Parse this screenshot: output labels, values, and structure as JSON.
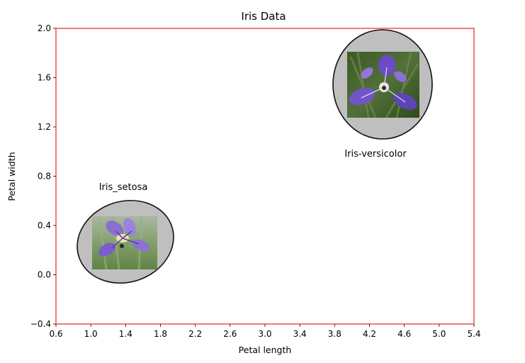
{
  "chart_data": {
    "type": "scatter",
    "title": "Iris Data",
    "xlabel": "Petal length",
    "ylabel": "Petal width",
    "xlim": [
      0.6,
      5.4
    ],
    "ylim": [
      -0.4,
      2.0
    ],
    "xticks": [
      0.6,
      1.0,
      1.4,
      1.8,
      2.2,
      2.6,
      3.0,
      3.4,
      3.8,
      4.2,
      4.6,
      5.0,
      5.4
    ],
    "yticks": [
      -0.4,
      0.0,
      0.4,
      0.8,
      1.2,
      1.6,
      2.0
    ],
    "xtick_labels": [
      "0.6",
      "1.0",
      "1.4",
      "1.8",
      "2.2",
      "2.6",
      "3.0",
      "3.4",
      "3.8",
      "4.2",
      "4.6",
      "5.0",
      "5.4"
    ],
    "ytick_labels": [
      "−0.4",
      "0.0",
      "0.4",
      "0.8",
      "1.2",
      "1.6",
      "2.0"
    ],
    "grid": false,
    "axis_frame_color": "#e8261f",
    "points": [
      {
        "name": "Iris_setosa",
        "x": 1.35,
        "y": 0.2,
        "image": "setosa-flower-photo"
      },
      {
        "name": "Iris-versicolor",
        "x": 4.3,
        "y": 1.5,
        "image": "versicolor-flower-photo"
      }
    ]
  }
}
